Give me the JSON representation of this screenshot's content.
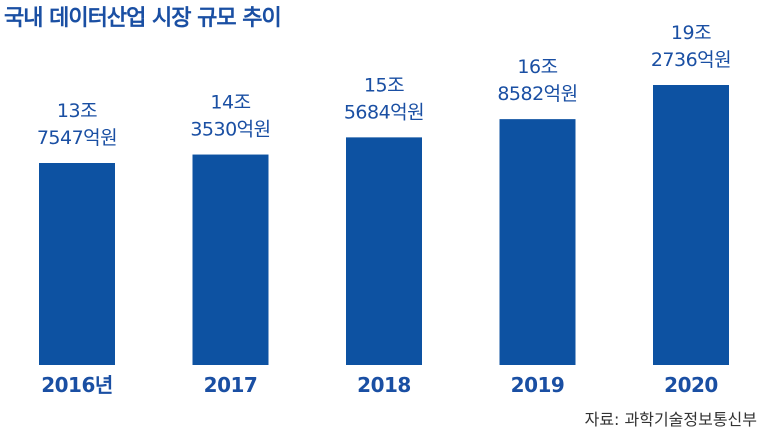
{
  "chart_data": {
    "type": "bar",
    "title": "국내 데이터산업 시장 규모 추이",
    "categories": [
      "2016년",
      "2017",
      "2018",
      "2019",
      "2020"
    ],
    "values": [
      137547,
      143530,
      155684,
      168582,
      192736
    ],
    "value_labels": [
      [
        "13조",
        "7547억원"
      ],
      [
        "14조",
        "3530억원"
      ],
      [
        "15조",
        "5684억원"
      ],
      [
        "16조",
        "8582억원"
      ],
      [
        "19조",
        "2736억원"
      ]
    ],
    "unit": "억원",
    "ylim": [
      0,
      200000
    ],
    "grid": false,
    "bar_color": "#0d52a2",
    "source": "자료: 과학기술정보통신부"
  }
}
